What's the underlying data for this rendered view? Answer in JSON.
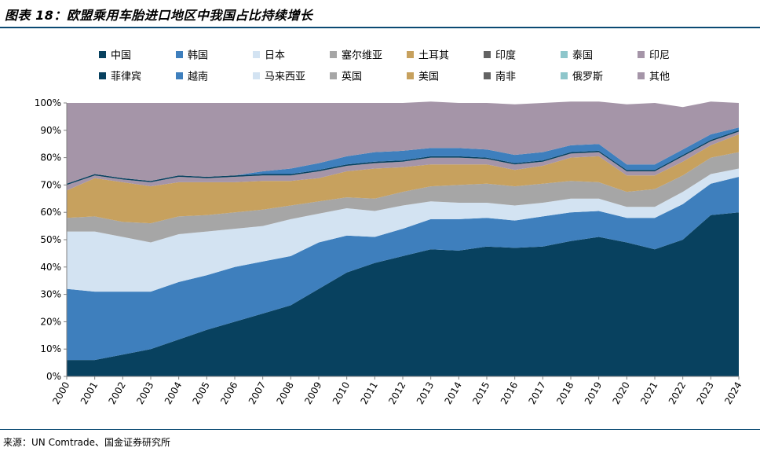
{
  "title": "图表 18：欧盟乘用车胎进口地区中我国占比持续增长",
  "source": "来源：UN Comtrade、国金证券研究所",
  "chart_data": {
    "type": "area",
    "stacked": true,
    "title": "图表 18：欧盟乘用车胎进口地区中我国占比持续增长",
    "xlabel": "",
    "ylabel": "",
    "ylim": [
      0,
      100
    ],
    "y_ticks": [
      "0%",
      "10%",
      "20%",
      "30%",
      "40%",
      "50%",
      "60%",
      "70%",
      "80%",
      "90%",
      "100%"
    ],
    "legend_position": "top",
    "categories": [
      "2000",
      "2001",
      "2002",
      "2003",
      "2004",
      "2005",
      "2006",
      "2007",
      "2008",
      "2009",
      "2010",
      "2011",
      "2012",
      "2013",
      "2014",
      "2015",
      "2016",
      "2017",
      "2018",
      "2019",
      "2020",
      "2021",
      "2022",
      "2023",
      "2024"
    ],
    "series": [
      {
        "name": "中国",
        "color": "#08415f",
        "values": [
          6,
          6,
          8,
          10,
          13.5,
          17,
          20,
          23,
          26,
          32,
          38,
          41.5,
          44,
          46.5,
          46,
          47.5,
          47,
          47.5,
          49.5,
          51,
          49,
          46.5,
          50,
          59,
          60
        ]
      },
      {
        "name": "韩国",
        "color": "#3e7fbd",
        "values": [
          26,
          25,
          23,
          21,
          21,
          20,
          20,
          19,
          18,
          17,
          13.5,
          9.5,
          10,
          11,
          11.5,
          10.5,
          10,
          11,
          10.5,
          9.5,
          9,
          11.5,
          13,
          11.5,
          13
        ]
      },
      {
        "name": "日本",
        "color": "#d3e3f2",
        "values": [
          21,
          22,
          20,
          18,
          17.5,
          16,
          14,
          13,
          13.5,
          10.5,
          10,
          9.5,
          8.5,
          6.5,
          6,
          5.5,
          5.5,
          5,
          5,
          4.5,
          4,
          4,
          4.5,
          3.5,
          3
        ]
      },
      {
        "name": "塞尔维亚",
        "color": "#a6a6a6",
        "values": [
          5,
          5.5,
          5.5,
          7,
          6.5,
          6,
          6,
          6,
          5,
          4.5,
          4,
          4.5,
          5,
          5.5,
          6.5,
          7,
          7,
          7,
          6.5,
          6,
          5.5,
          6.5,
          6,
          6,
          6
        ]
      },
      {
        "name": "土耳其",
        "color": "#c7a15e",
        "values": [
          10,
          14,
          14.5,
          13.5,
          12.5,
          12,
          11,
          10.5,
          9,
          8.5,
          9.5,
          11,
          9,
          8,
          7.5,
          7,
          6,
          6.5,
          8.5,
          9.5,
          6,
          5,
          5,
          4.5,
          6.5
        ]
      },
      {
        "name": "印度",
        "color": "#636363",
        "values": [
          0,
          0,
          0,
          0,
          0,
          0,
          0,
          0,
          0,
          0,
          0,
          0,
          0,
          0,
          0,
          0,
          0,
          0,
          0,
          0,
          0,
          0,
          0,
          0,
          0
        ]
      },
      {
        "name": "泰国",
        "color": "#8ec6cb",
        "values": [
          0,
          0,
          0,
          0,
          0,
          0,
          0,
          0,
          0,
          0,
          0,
          0,
          0,
          0,
          0,
          0,
          0,
          0,
          0,
          0,
          0,
          0,
          0,
          0,
          0
        ]
      },
      {
        "name": "印尼",
        "color": "#a595a8",
        "values": [
          2,
          1,
          1,
          1.5,
          2,
          1.5,
          2,
          2,
          2,
          2.5,
          2,
          2,
          2,
          2.5,
          2.5,
          2,
          2,
          1.5,
          1.5,
          1.5,
          1.5,
          1.5,
          2,
          1.5,
          1
        ]
      },
      {
        "name": "菲律宾",
        "color": "#08415f",
        "values": [
          0.5,
          0.5,
          0.5,
          0.5,
          0.5,
          0.5,
          0.5,
          0.5,
          0.5,
          0.5,
          0.5,
          0.5,
          0.5,
          0.5,
          0.5,
          0.5,
          0.5,
          0.5,
          0.5,
          0.5,
          0.5,
          0.5,
          0.5,
          0.5,
          0.5
        ]
      },
      {
        "name": "越南",
        "color": "#3e7fbd",
        "values": [
          0,
          0,
          0,
          0,
          0,
          0,
          0,
          1,
          2,
          2.5,
          3,
          3.5,
          3.5,
          3,
          3,
          3,
          3,
          3,
          2.5,
          2.5,
          2,
          2,
          2,
          2,
          1
        ]
      },
      {
        "name": "马来西亚",
        "color": "#d3e3f2",
        "values": [
          0,
          0,
          0,
          0,
          0,
          0,
          0,
          0,
          0,
          0,
          0,
          0,
          0,
          0,
          0,
          0,
          0,
          0,
          0,
          0,
          0,
          0,
          0,
          0,
          0
        ]
      },
      {
        "name": "英国",
        "color": "#a6a6a6",
        "values": [
          0,
          0,
          0,
          0,
          0,
          0,
          0,
          0,
          0,
          0,
          0,
          0,
          0,
          0,
          0,
          0,
          0,
          0,
          0,
          0,
          0,
          0,
          0,
          0,
          0
        ]
      },
      {
        "name": "美国",
        "color": "#c7a15e",
        "values": [
          0,
          0,
          0,
          0,
          0,
          0,
          0,
          0,
          0,
          0,
          0,
          0,
          0,
          0,
          0,
          0,
          0,
          0,
          0,
          0,
          0,
          0,
          0,
          0,
          0
        ]
      },
      {
        "name": "南非",
        "color": "#636363",
        "values": [
          0,
          0,
          0,
          0,
          0,
          0,
          0,
          0,
          0,
          0,
          0,
          0,
          0,
          0,
          0,
          0,
          0,
          0,
          0,
          0,
          0,
          0,
          0,
          0,
          0
        ]
      },
      {
        "name": "俄罗斯",
        "color": "#8ec6cb",
        "values": [
          0,
          0,
          0,
          0,
          0,
          0,
          0,
          0,
          0,
          0,
          0,
          0,
          0,
          0,
          0,
          0,
          0,
          0,
          0,
          0,
          0,
          0,
          0,
          0,
          0
        ]
      },
      {
        "name": "其他",
        "color": "#a595a8",
        "values": [
          29.5,
          26,
          27.5,
          28.5,
          26.5,
          27,
          26.5,
          25,
          24,
          22,
          19.5,
          18,
          17.5,
          17,
          16.5,
          17,
          18.5,
          18,
          16,
          15.5,
          22,
          22.5,
          15.5,
          12,
          9
        ]
      }
    ]
  }
}
